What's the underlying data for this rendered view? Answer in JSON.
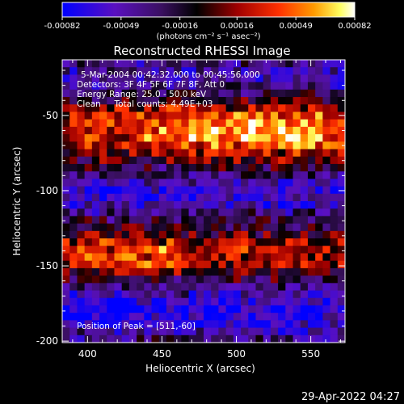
{
  "colorbar": {
    "ticks": [
      "-0.00082",
      "-0.00049",
      "-0.00016",
      "0.00016",
      "0.00049",
      "0.00082"
    ],
    "unit_label": "(photons cm⁻² s⁻¹ asec⁻²)"
  },
  "info": {
    "line1": "5-Mar-2004 00:42:32.000 to 00:45:56.000",
    "line2": "Detectors: 3F 4F 5F 6F 7F 8F, Att 0",
    "line3": "Energy Range: 25.0 - 50.0 keV",
    "line4": "Clean     Total counts: 4.49E+03",
    "peak": "Position of Peak = [511,-60]"
  },
  "timestamp": "29-Apr-2022 04:27",
  "chart_data": {
    "type": "heatmap",
    "title": "Reconstructed RHESSI Image",
    "xlabel": "Heliocentric X (arcsec)",
    "ylabel": "Heliocentric Y (arcsec)",
    "xlim": [
      383,
      573
    ],
    "ylim": [
      -201,
      -13
    ],
    "xticks": [
      400,
      450,
      500,
      550
    ],
    "yticks": [
      -50,
      -100,
      -150,
      -200
    ],
    "color_range": [
      -0.00082,
      0.00082
    ],
    "colormap": [
      "#0000ff",
      "#4a00cc",
      "#7020a0",
      "#000000",
      "#8b0000",
      "#ff3000",
      "#ff9000",
      "#ffff80",
      "#ffffff"
    ],
    "peak": [
      511,
      -60
    ],
    "bands": [
      {
        "name": "bright-upper",
        "y_center": -60,
        "y_halfwidth": 18,
        "x_range": [
          383,
          573
        ],
        "peak_x": 511,
        "peak_level": 0.00082
      },
      {
        "name": "bright-lower",
        "y_center": -143,
        "y_halfwidth": 15,
        "x_range": [
          383,
          573
        ],
        "peak_x": 420,
        "peak_level": 0.0006
      },
      {
        "name": "dark-middle",
        "y_center": -102,
        "y_halfwidth": 15,
        "peak_level": -0.0005
      },
      {
        "name": "dark-bottom",
        "y_center": -180,
        "y_halfwidth": 18,
        "peak_level": -0.0006
      },
      {
        "name": "dark-top",
        "y_center": -25,
        "y_halfwidth": 12,
        "peak_level": -0.0004
      }
    ]
  }
}
